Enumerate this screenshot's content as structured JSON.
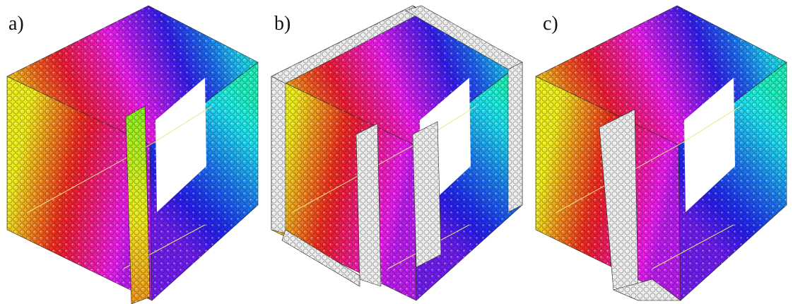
{
  "panels": [
    {
      "id": "a",
      "label": "a)"
    },
    {
      "id": "b",
      "label": "b)"
    },
    {
      "id": "c",
      "label": "c)"
    }
  ],
  "colors": {
    "background": "#ffffff",
    "white_spheres": "#ededed",
    "wireframe": "#e8e884",
    "sphere_edge": "#2a2a2a"
  }
}
